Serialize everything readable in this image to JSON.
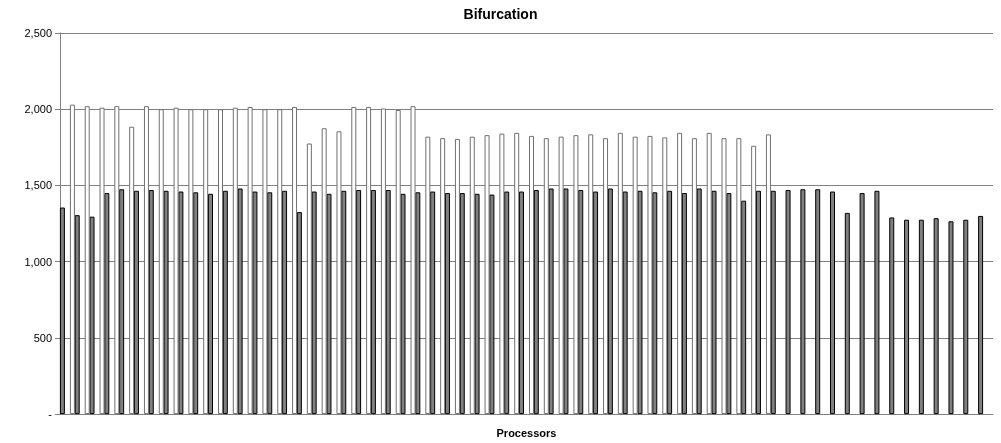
{
  "chart_data": {
    "type": "bar",
    "title": "Bifurcation",
    "xlabel": "Processors",
    "categories": [
      null,
      null,
      null,
      null,
      null,
      null,
      null,
      null,
      null,
      null,
      null,
      null,
      null,
      null,
      null,
      null,
      null,
      null,
      null,
      null,
      null,
      null,
      null,
      null,
      null,
      null,
      null,
      null,
      null,
      null,
      null,
      null,
      null,
      null,
      null,
      null,
      null,
      null,
      null,
      null,
      null,
      null,
      null,
      null,
      null,
      null,
      null,
      null,
      null,
      null,
      null,
      null,
      null,
      null,
      null,
      null,
      null,
      null,
      null,
      null,
      null,
      null,
      null
    ],
    "series": [
      {
        "color": "#808080",
        "values": [
          1355,
          1305,
          1295,
          1450,
          1475,
          1465,
          1470,
          1465,
          1460,
          1455,
          1445,
          1465,
          1480,
          1460,
          1455,
          1465,
          1325,
          1460,
          1445,
          1465,
          1470,
          1470,
          1470,
          1445,
          1455,
          1460,
          1450,
          1450,
          1445,
          1440,
          1460,
          1460,
          1470,
          1480,
          1480,
          1470,
          1460,
          1480,
          1460,
          1465,
          1455,
          1465,
          1450,
          1480,
          1465,
          1450,
          1400,
          1465,
          1465,
          1470,
          1475,
          1475,
          1460,
          1320,
          1450,
          1465,
          1290,
          1275,
          1275,
          1285,
          1265,
          1275,
          1300
        ]
      },
      {
        "color": "#ffffff",
        "values": [
          2030,
          2020,
          2010,
          2020,
          1885,
          2020,
          2000,
          2010,
          2000,
          2000,
          2000,
          2010,
          2015,
          2000,
          2000,
          2015,
          1775,
          1875,
          1855,
          2015,
          2015,
          2005,
          1995,
          2020,
          1820,
          1810,
          1805,
          1820,
          1830,
          1840,
          1845,
          1825,
          1810,
          1820,
          1830,
          1835,
          1810,
          1845,
          1820,
          1825,
          1815,
          1845,
          1810,
          1845,
          1810,
          1810,
          1760,
          1835,
          null,
          null,
          null,
          null,
          null,
          null,
          null,
          null,
          null,
          null,
          null,
          null,
          null,
          null,
          null
        ]
      }
    ],
    "ylim": [
      0,
      2500
    ],
    "yticks": [
      {
        "value": 0,
        "label": "-"
      },
      {
        "value": 500,
        "label": "500"
      },
      {
        "value": 1000,
        "label": "1,000"
      },
      {
        "value": 1500,
        "label": "1,500"
      },
      {
        "value": 2000,
        "label": "2,000"
      },
      {
        "value": 2500,
        "label": "2,500"
      }
    ],
    "grid": true
  }
}
